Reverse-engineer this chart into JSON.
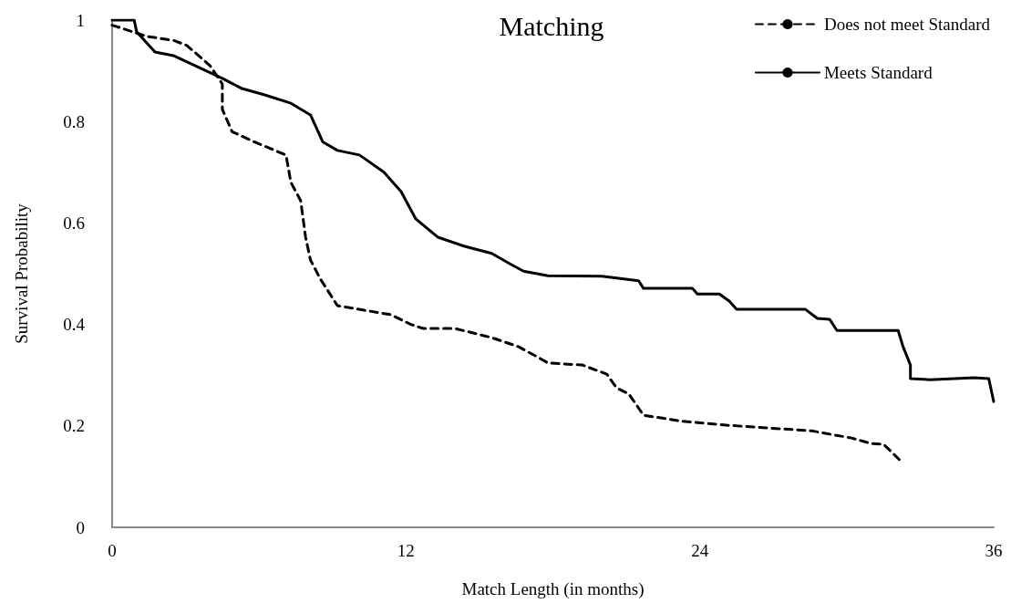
{
  "chart_data": {
    "type": "line",
    "title": "Matching",
    "xlabel": "Match Length (in months)",
    "ylabel": "Survival Probability",
    "xlim": [
      0,
      36
    ],
    "xticks": [
      0,
      12,
      24,
      36
    ],
    "ylim": [
      0,
      1
    ],
    "yticks": [
      0,
      0.2,
      0.4,
      0.6,
      0.8,
      1
    ],
    "grid": false,
    "legend": "top right",
    "marker": "none",
    "series": [
      {
        "name": "Does not meet Standard",
        "color": "#000000",
        "line_style": "dashed",
        "x": [
          0,
          1.4,
          2.5,
          3.05,
          4.0,
          4.5,
          4.5,
          4.9,
          5.8,
          7.1,
          7.3,
          7.7,
          7.9,
          8.1,
          8.5,
          9.2,
          10.3,
          11.4,
          12.2,
          12.7,
          14.0,
          15.5,
          16.6,
          17.4,
          17.8,
          19.2,
          20.2,
          20.6,
          21.1,
          21.7,
          23.3,
          25.2,
          28.6,
          30.2,
          31.0,
          31.5,
          32.2
        ],
        "values": [
          0.99,
          0.968,
          0.96,
          0.95,
          0.91,
          0.874,
          0.824,
          0.78,
          0.76,
          0.734,
          0.68,
          0.644,
          0.572,
          0.527,
          0.49,
          0.437,
          0.428,
          0.419,
          0.4,
          0.392,
          0.392,
          0.374,
          0.356,
          0.335,
          0.324,
          0.32,
          0.302,
          0.275,
          0.263,
          0.221,
          0.209,
          0.201,
          0.19,
          0.176,
          0.165,
          0.164,
          0.131
        ]
      },
      {
        "name": "Meets Standard",
        "color": "#000000",
        "line_style": "solid",
        "x": [
          0,
          0.9,
          1.0,
          1.75,
          2.5,
          3.4,
          4.5,
          5.3,
          6.2,
          7.3,
          8.1,
          8.6,
          9.2,
          10.1,
          11.1,
          11.8,
          12.4,
          13.3,
          14.4,
          15.5,
          16.3,
          16.8,
          17.8,
          20.0,
          21.5,
          21.7,
          23.7,
          23.9,
          24.8,
          25.2,
          25.5,
          28.3,
          28.8,
          29.3,
          29.6,
          32.1,
          32.3,
          32.6,
          32.6,
          33.4,
          35.2,
          35.8,
          36
        ],
        "values": [
          1,
          1,
          0.977,
          0.937,
          0.93,
          0.91,
          0.885,
          0.865,
          0.853,
          0.836,
          0.813,
          0.76,
          0.743,
          0.734,
          0.7,
          0.662,
          0.608,
          0.572,
          0.554,
          0.54,
          0.518,
          0.505,
          0.496,
          0.495,
          0.486,
          0.471,
          0.471,
          0.46,
          0.46,
          0.446,
          0.43,
          0.43,
          0.412,
          0.41,
          0.388,
          0.388,
          0.356,
          0.32,
          0.293,
          0.291,
          0.295,
          0.293,
          0.248
        ]
      }
    ]
  }
}
